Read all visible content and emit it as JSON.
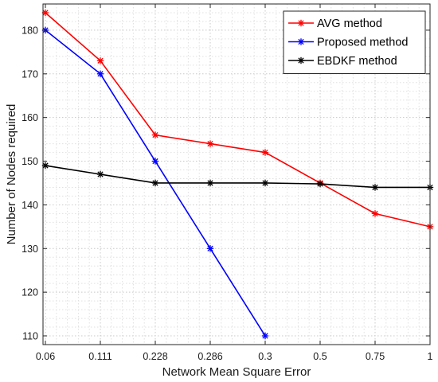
{
  "chart_data": {
    "type": "line",
    "title": "",
    "xlabel": "Network Mean Square Error",
    "ylabel": "Number of Nodes required",
    "categories": [
      "0.06",
      "0.111",
      "0.228",
      "0.286",
      "0.3",
      "0.5",
      "0.75",
      "1"
    ],
    "ylim": [
      108,
      186
    ],
    "yticks": [
      110,
      120,
      130,
      140,
      150,
      160,
      170,
      180
    ],
    "grid": true,
    "legend_position": "top-right",
    "series": [
      {
        "name": "AVG method",
        "color": "#ff0000",
        "marker": "asterisk",
        "values": [
          184,
          173,
          156,
          154,
          152,
          145,
          138,
          135
        ]
      },
      {
        "name": "Proposed method",
        "color": "#0000ff",
        "marker": "asterisk",
        "values": [
          180,
          170,
          150,
          130,
          110,
          null,
          null,
          null
        ]
      },
      {
        "name": "EBDKF method",
        "color": "#000000",
        "marker": "asterisk",
        "values": [
          149,
          147,
          145,
          145,
          145,
          144.8,
          144,
          144
        ]
      }
    ]
  }
}
